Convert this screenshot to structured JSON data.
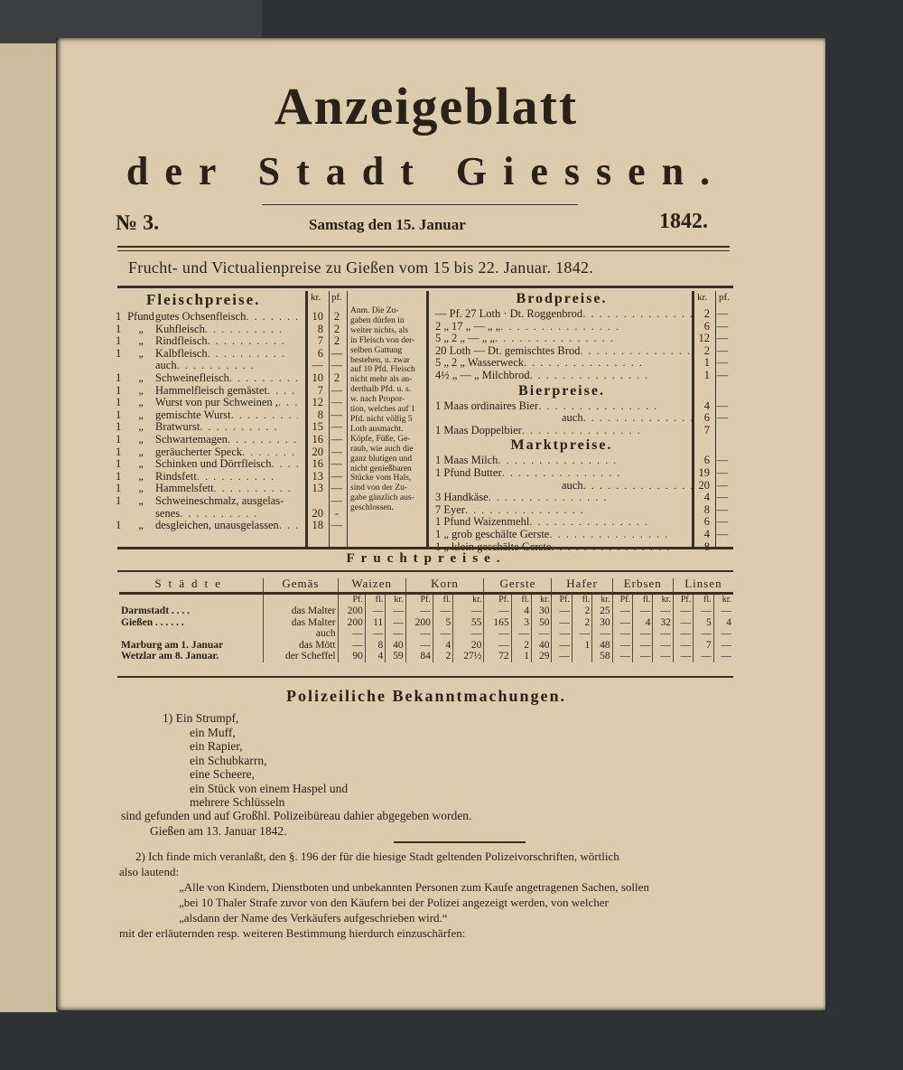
{
  "header": {
    "title": "Anzeigeblatt",
    "subtitle": "der Stadt Giessen.",
    "issue": "№ 3.",
    "date": "Samstag den 15. Januar",
    "year": "1842."
  },
  "prices_heading": "Frucht- und Victualienpreise zu Gießen vom 15 bis 22. Januar. 1842.",
  "meat": {
    "heading": "Fleischpreise.",
    "col_kr": "kr.",
    "col_pf": "pf.",
    "rows": [
      [
        "1",
        "Pfund",
        "gutes Ochsenfleisch",
        "10",
        "2"
      ],
      [
        "1",
        "„",
        "Kuhfleisch",
        "8",
        "2"
      ],
      [
        "1",
        "„",
        "Rindfleisch",
        "7",
        "2"
      ],
      [
        "1",
        "„",
        "Kalbfleisch",
        "6",
        "—"
      ],
      [
        "",
        "",
        "auch",
        "—",
        "—"
      ],
      [
        "1",
        "„",
        "Schweinefleisch",
        "10",
        "2"
      ],
      [
        "1",
        "„",
        "Hammelfleisch gemästet",
        "7",
        "—"
      ],
      [
        "1",
        "„",
        "Wurst von pur Schweinen ,",
        "12",
        "—"
      ],
      [
        "1",
        "„",
        "gemischte Wurst",
        "8",
        "—"
      ],
      [
        "1",
        "„",
        "Bratwurst",
        "15",
        "—"
      ],
      [
        "1",
        "„",
        "Schwartemagen",
        "16",
        "—"
      ],
      [
        "1",
        "„",
        "geräucherter Speck",
        "20",
        "—"
      ],
      [
        "1",
        "„",
        "Schinken und Dörrfleisch",
        "16",
        "—"
      ],
      [
        "1",
        "„",
        "Rindsfett",
        "13",
        "—"
      ],
      [
        "1",
        "„",
        "Hammelsfett",
        "13",
        "—"
      ],
      [
        "1",
        "„",
        "Schweineschmalz, ausgelas-",
        "",
        "—"
      ],
      [
        "",
        "",
        "senes",
        "20",
        "-"
      ],
      [
        "1",
        "„",
        "desgleichen, unausgelassen",
        "18",
        "—"
      ]
    ],
    "note": [
      "Anm. Die Zu-",
      "gaben dürfen in",
      "weiter nichts, als",
      "in Fleisch von der-",
      "selben Gattung",
      "bestehen, u. zwar",
      "auf 10 Pfd. Fleisch",
      "nicht mehr als an-",
      "derthalb Pfd. u. s.",
      "w. nach Propor-",
      "tion, welches auf 1",
      "Pfd. nicht völlig 5",
      "Loth ausmacht.",
      "Köpfe, Füße, Ge-",
      "raub, wie auch die",
      "ganz blutigen und",
      "nicht genießbaren",
      "Stücke vom Hals,",
      "sind von der Zu-",
      "gabe gänzlich aus-",
      "geschlossen."
    ]
  },
  "bread": {
    "heading": "Brodpreise.",
    "col_kr": "kr.",
    "col_pf": "pf.",
    "rows": [
      [
        "— Pf. 27 Loth · Dt. Roggenbrod",
        "2",
        "—"
      ],
      [
        "2 „ 17 „ — „ „",
        "6",
        "—"
      ],
      [
        "5 „ 2 „ — „ „",
        "12",
        "—"
      ],
      [
        "20 Loth — Dt. gemischtes Brod",
        "2",
        "—"
      ],
      [
        "5 „ 2 „ Wasserweck",
        "1",
        "—"
      ],
      [
        "4½ „ — „ Milchbrod",
        "1",
        "—"
      ]
    ],
    "beer_heading": "Bierpreise.",
    "beer_rows": [
      [
        "1 Maas ordinaires Bier",
        "4",
        "—"
      ],
      [
        "auch",
        "6",
        "—"
      ],
      [
        "1 Maas Doppelbier",
        "7",
        ""
      ]
    ],
    "market_heading": "Marktpreise.",
    "market_rows": [
      [
        "1 Maas Milch",
        "6",
        "—"
      ],
      [
        "1 Pfund Butter",
        "19",
        "—"
      ],
      [
        "auch",
        "20",
        "—"
      ],
      [
        "3 Handkäse",
        "4",
        "—"
      ],
      [
        "7 Eyer",
        "8",
        "—"
      ],
      [
        "1 Pfund Waizenmehl",
        "6",
        "—"
      ],
      [
        "1 „ grob geschälte Gerste",
        "4",
        "—"
      ],
      [
        "1 „ klein geschälte Gerste",
        "8",
        "—"
      ]
    ]
  },
  "grain": {
    "heading": "Fruchtpreise.",
    "col_city": "Städte",
    "col_unit": "Gemäs",
    "grains": [
      "Waizen",
      "Korn",
      "Gerste",
      "Hafer",
      "Erbsen",
      "Linsen"
    ],
    "sub": [
      "Pf.",
      "fl.",
      "kr."
    ],
    "rows": [
      {
        "city": "Darmstadt . . . .",
        "unit": "das Malter",
        "v": [
          "200",
          "—",
          "—",
          "—",
          "—",
          "—",
          "—",
          "4",
          "30",
          "—",
          "2",
          "25",
          "—",
          "—",
          "—",
          "—",
          "—",
          "—"
        ]
      },
      {
        "city": "Gießen . . . . . .",
        "unit": "das Malter",
        "v": [
          "200",
          "11",
          "—",
          "200",
          "5",
          "55",
          "165",
          "3",
          "50",
          "—",
          "2",
          "30",
          "—",
          "4",
          "32",
          "—",
          "5",
          "4"
        ]
      },
      {
        "city": "",
        "unit": "auch",
        "v": [
          "—",
          "—",
          "—",
          "—",
          "—",
          "—",
          "—",
          "—",
          "—",
          "—",
          "—",
          "—",
          "—",
          "—",
          "—",
          "—",
          "—",
          "—"
        ]
      },
      {
        "city": "Marburg am 1. Januar",
        "unit": "das Mött",
        "v": [
          "—",
          "8",
          "40",
          "—",
          "4",
          "20",
          "—",
          "2",
          "40",
          "—",
          "1",
          "48",
          "—",
          "—",
          "—",
          "—",
          "7",
          "—"
        ]
      },
      {
        "city": "Wetzlar am 8. Januar.",
        "unit": "der Scheffel",
        "v": [
          "90",
          "4",
          "59",
          "84",
          "2",
          "27½",
          "72",
          "1",
          "29",
          "—",
          "",
          "58",
          "—",
          "—",
          "—",
          "—",
          "—",
          "—"
        ]
      }
    ]
  },
  "police": {
    "heading": "Polizeiliche Bekanntmachungen.",
    "item1": [
      "1) Ein Strumpf,",
      "ein Muff,",
      "ein Rapier,",
      "ein Schubkarrn,",
      "eine Scheere,",
      "ein Stück von einem Haspel und",
      "mehrere Schlüsseln"
    ],
    "item1_end": "sind gefunden und auf Großhl. Polizeibüreau dahier abgegeben worden.",
    "item1_sign": "Gießen am 13. Januar 1842.",
    "item2": [
      "2) Ich finde mich veranlaßt, den §. 196 der für die hiesige Stadt geltenden Polizeivorschriften, wörtlich",
      "also lautend:",
      "„Alle von Kindern, Dienstboten und unbekannten Personen zum Kaufe angetragenen Sachen, sollen",
      "„bei 10 Thaler Strafe zuvor von den Käufern bei der Polizei angezeigt werden, von welcher",
      "„alsdann der Name des Verkäufers aufgeschrieben wird.“",
      "mit der erläuternden resp. weiteren Bestimmung hierdurch einzuschärfen:"
    ]
  }
}
